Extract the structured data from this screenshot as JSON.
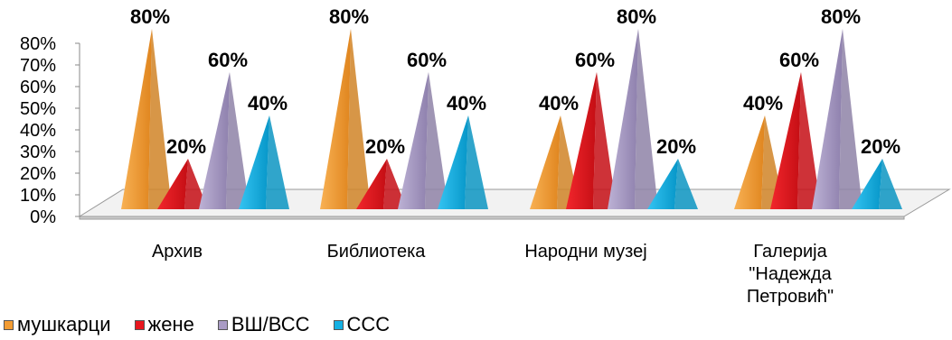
{
  "chart_data": {
    "type": "bar",
    "categories": [
      "Архив",
      "Библиотека",
      "Народни музеј",
      "Галерија \"Надежда Петровић\""
    ],
    "series": [
      {
        "name": "мушкарци",
        "values": [
          80,
          80,
          40,
          40
        ],
        "color": "#F39C32"
      },
      {
        "name": "жене",
        "values": [
          20,
          20,
          60,
          60
        ],
        "color": "#E8161E"
      },
      {
        "name": "ВШ/ВСС",
        "values": [
          60,
          60,
          80,
          80
        ],
        "color": "#A99BC4"
      },
      {
        "name": "ССС",
        "values": [
          40,
          40,
          20,
          20
        ],
        "color": "#14B0E3"
      }
    ],
    "data_labels": [
      [
        "80%",
        "20%",
        "60%",
        "40%"
      ],
      [
        "80%",
        "20%",
        "60%",
        "40%"
      ],
      [
        "40%",
        "60%",
        "80%",
        "20%"
      ],
      [
        "40%",
        "60%",
        "80%",
        "20%"
      ]
    ],
    "y_ticks": [
      "0%",
      "10%",
      "20%",
      "30%",
      "40%",
      "50%",
      "60%",
      "70%",
      "80%"
    ],
    "ylim": [
      0,
      80
    ],
    "legend_position": "bottom-left",
    "bar_shape": "3d-pyramid"
  }
}
